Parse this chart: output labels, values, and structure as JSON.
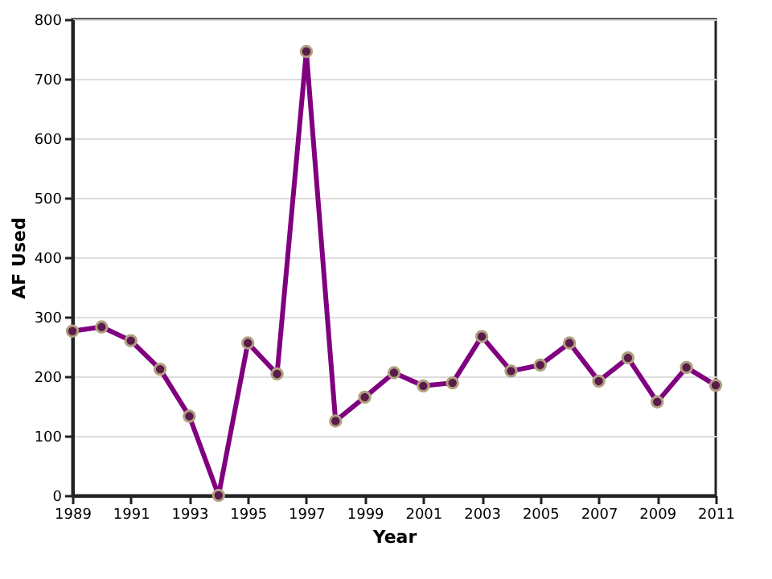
{
  "chart_data": {
    "type": "line",
    "xlabel": "Year",
    "ylabel": "AF Used",
    "x": [
      1989,
      1990,
      1991,
      1992,
      1993,
      1994,
      1995,
      1996,
      1997,
      1998,
      1999,
      2000,
      2001,
      2002,
      2003,
      2004,
      2005,
      2006,
      2007,
      2008,
      2009,
      2010,
      2011
    ],
    "series": [
      {
        "color": "#800080",
        "values": [
          276,
          283,
          260,
          212,
          133,
          0,
          256,
          204,
          746,
          125,
          165,
          206,
          184,
          189,
          267,
          209,
          219,
          256,
          192,
          231,
          157,
          215,
          185
        ]
      }
    ],
    "xlim": [
      1989,
      2011
    ],
    "xticks": [
      1989,
      1991,
      1993,
      1995,
      1997,
      1999,
      2001,
      2003,
      2005,
      2007,
      2009,
      2011
    ],
    "ylim": [
      0,
      800
    ],
    "yticks": [
      0,
      100,
      200,
      300,
      400,
      500,
      600,
      700,
      800
    ],
    "grid": "y",
    "marker": "circle",
    "line_style": "solid"
  }
}
